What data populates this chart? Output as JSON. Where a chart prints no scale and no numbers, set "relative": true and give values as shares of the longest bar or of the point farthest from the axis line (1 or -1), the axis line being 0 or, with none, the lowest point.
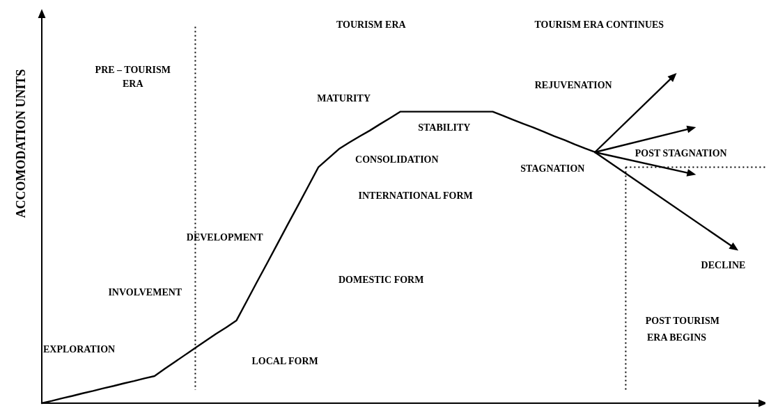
{
  "chart_data": {
    "type": "line",
    "relative": true,
    "ylabel": "ACCOMODATION UNITS",
    "categories": [
      null,
      null,
      null,
      null,
      null,
      null,
      null,
      null,
      null,
      null,
      null,
      null,
      null,
      null,
      null,
      null,
      null,
      null,
      null,
      null,
      null,
      null,
      null,
      null,
      null,
      null,
      null,
      null,
      null,
      null,
      null,
      null,
      null,
      null,
      null,
      null,
      null,
      null,
      null,
      null,
      null,
      null,
      null,
      null,
      null,
      null,
      null,
      null,
      null,
      null,
      null,
      null,
      null,
      null,
      null
    ],
    "series": [
      {
        "color": "#000000",
        "values": [
          0,
          0.008,
          0.017,
          0.025,
          0.034,
          0.042,
          0.051,
          0.059,
          0.068,
          0.076,
          0.085,
          0.093,
          0.118,
          0.142,
          0.166,
          0.19,
          0.214,
          0.238,
          0.26,
          0.284,
          0.35,
          0.416,
          0.481,
          0.547,
          0.613,
          0.678,
          0.744,
          0.81,
          0.841,
          0.872,
          0.894,
          0.915,
          0.935,
          0.957,
          0.978,
          1,
          1,
          1,
          1,
          1,
          1,
          1,
          1,
          1,
          1,
          0.986,
          0.972,
          0.958,
          0.945,
          0.931,
          0.916,
          0.903,
          0.888,
          0.874,
          0.861
        ]
      }
    ],
    "annotations": [
      "PRE – TOURISM",
      "ERA",
      "TOURISM ERA",
      "TOURISM ERA CONTINUES",
      "MATURITY",
      "REJUVENATION",
      "STABILITY",
      "CONSOLIDATION",
      "POST STAGNATION",
      "STAGNATION",
      "INTERNATIONAL FORM",
      "DEVELOPMENT",
      "DECLINE",
      "DOMESTIC FORM",
      "INVOLVEMENT",
      "POST TOURISM",
      "ERA BEGINS",
      "EXPLORATION",
      "LOCAL FORM"
    ]
  }
}
